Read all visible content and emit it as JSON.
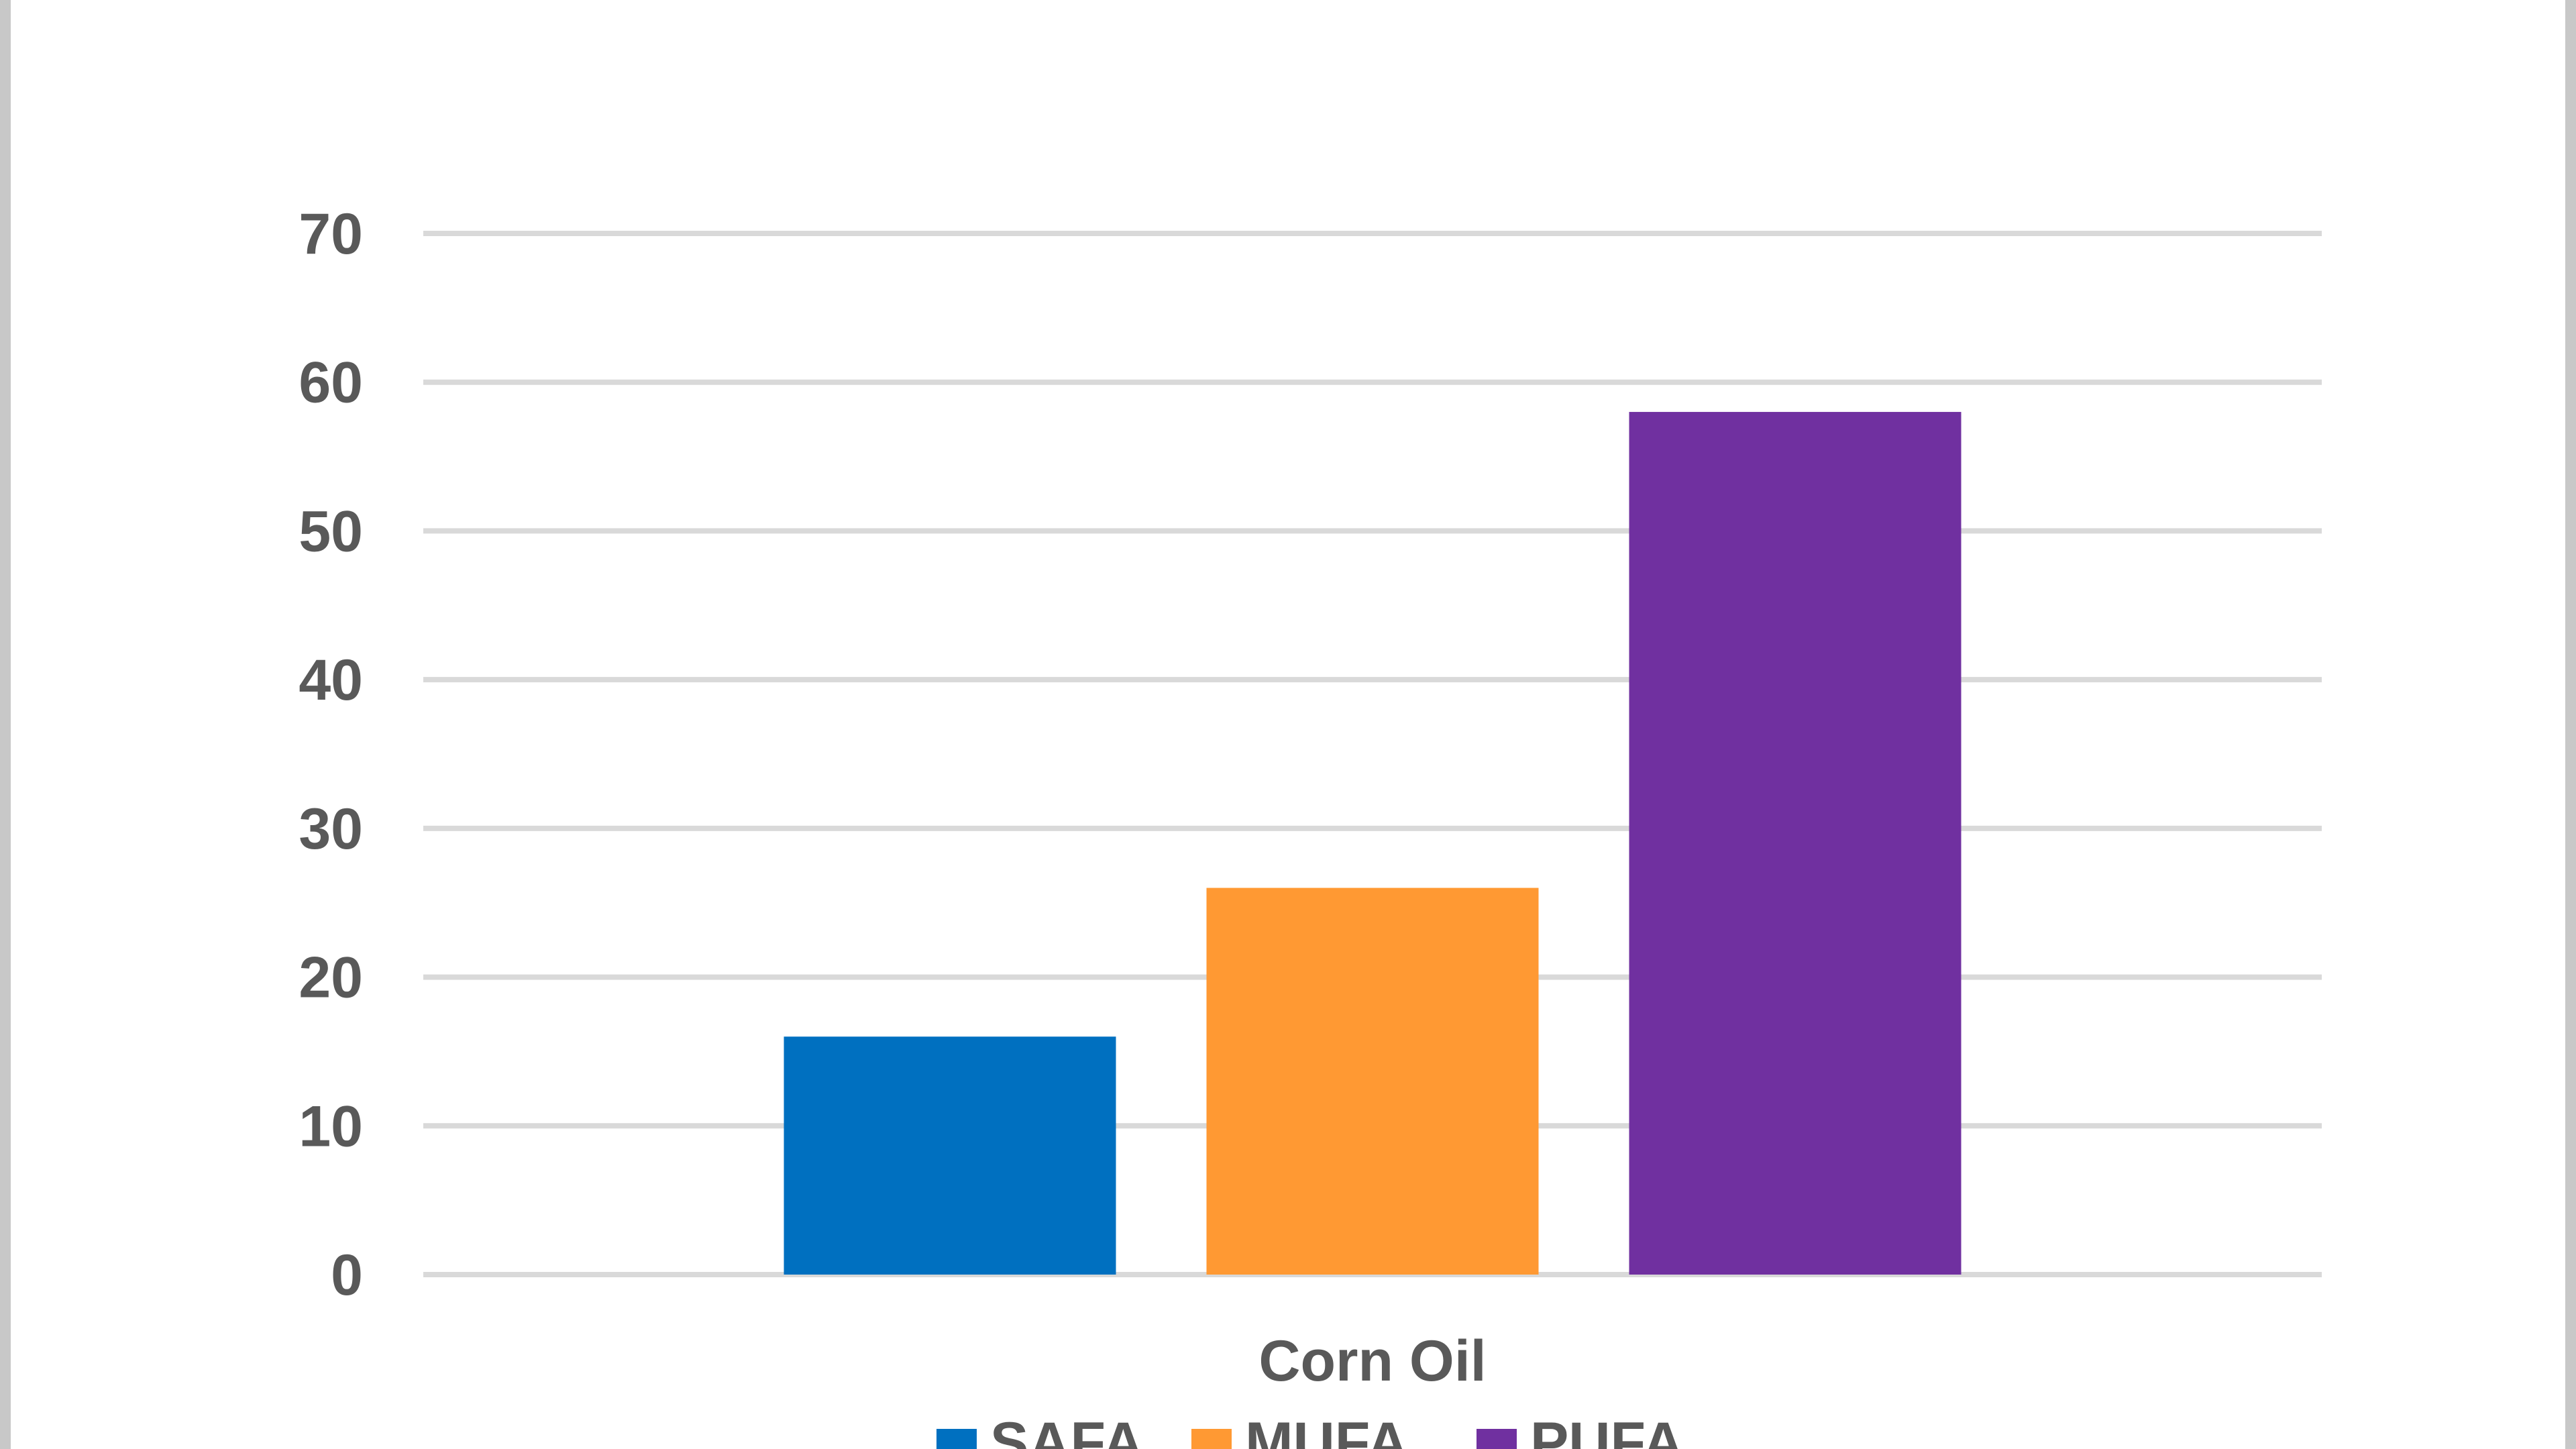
{
  "chart_data": {
    "type": "bar",
    "categories": [
      "Corn Oil"
    ],
    "series": [
      {
        "name": "SAFA",
        "values": [
          16
        ],
        "color": "#0070C0"
      },
      {
        "name": "MUFA",
        "values": [
          26
        ],
        "color": "#FF9933"
      },
      {
        "name": "PUFA",
        "values": [
          58
        ],
        "color": "#7030A0"
      }
    ],
    "ylim": [
      0,
      70
    ],
    "yticks": [
      0,
      10,
      20,
      30,
      40,
      50,
      60,
      70
    ],
    "grid": true,
    "legend": "bottom",
    "gridline_color": "#d9d9d9"
  }
}
